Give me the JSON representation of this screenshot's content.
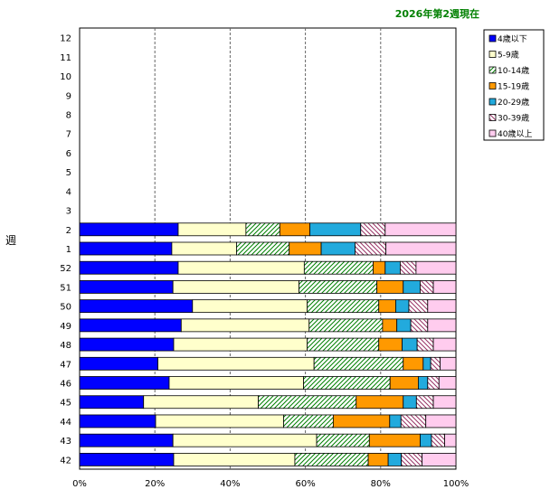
{
  "chart_data": {
    "type": "bar",
    "orientation": "horizontal",
    "stacked": "percent",
    "title": "2026年第2週現在",
    "ylabel": "週",
    "xlabel": "",
    "xlim": [
      0,
      100
    ],
    "x_ticks": [
      "0%",
      "20%",
      "40%",
      "60%",
      "80%",
      "100%"
    ],
    "categories": [
      "12",
      "11",
      "10",
      "9",
      "8",
      "7",
      "6",
      "5",
      "4",
      "3",
      "2",
      "1",
      "52",
      "51",
      "50",
      "49",
      "48",
      "47",
      "46",
      "45",
      "44",
      "43",
      "42"
    ],
    "legend_position": "top-right",
    "series": [
      {
        "name": "4歳以下",
        "color": "#0000ff",
        "pattern": "solid",
        "values": [
          null,
          null,
          null,
          null,
          null,
          null,
          null,
          null,
          null,
          null,
          26.2,
          24.5,
          26.2,
          24.8,
          30.0,
          27.0,
          25.0,
          20.8,
          23.8,
          17.0,
          20.2,
          24.8,
          25.0
        ]
      },
      {
        "name": "5-9歳",
        "color": "#ffffcc",
        "pattern": "solid",
        "values": [
          null,
          null,
          null,
          null,
          null,
          null,
          null,
          null,
          null,
          null,
          18.0,
          17.2,
          33.5,
          33.5,
          30.5,
          34.0,
          35.5,
          41.5,
          35.7,
          30.5,
          34.0,
          38.2,
          32.2
        ]
      },
      {
        "name": "10-14歳",
        "color": "#33aa33",
        "pattern": "hatch",
        "values": [
          null,
          null,
          null,
          null,
          null,
          null,
          null,
          null,
          null,
          null,
          9.0,
          14.0,
          18.3,
          20.7,
          19.0,
          19.5,
          19.0,
          23.7,
          23.0,
          26.0,
          13.2,
          14.0,
          19.5
        ]
      },
      {
        "name": "15-19歳",
        "color": "#ff9900",
        "pattern": "solid",
        "values": [
          null,
          null,
          null,
          null,
          null,
          null,
          null,
          null,
          null,
          null,
          8.0,
          8.5,
          3.2,
          7.0,
          4.5,
          3.8,
          6.2,
          5.3,
          7.5,
          12.5,
          15.0,
          13.5,
          5.3
        ]
      },
      {
        "name": "20-29歳",
        "color": "#22aadd",
        "pattern": "solid",
        "values": [
          null,
          null,
          null,
          null,
          null,
          null,
          null,
          null,
          null,
          null,
          13.5,
          9.0,
          4.0,
          4.5,
          3.5,
          3.7,
          4.0,
          2.0,
          2.5,
          3.5,
          3.0,
          3.0,
          3.5
        ]
      },
      {
        "name": "30-39歳",
        "color": "#993366",
        "pattern": "crosshatch",
        "values": [
          null,
          null,
          null,
          null,
          null,
          null,
          null,
          null,
          null,
          null,
          6.5,
          8.2,
          4.2,
          3.5,
          5.0,
          4.5,
          4.3,
          2.5,
          3.0,
          4.5,
          6.6,
          3.5,
          5.5
        ]
      },
      {
        "name": "40歳以上",
        "color": "#ffccee",
        "pattern": "solid",
        "values": [
          null,
          null,
          null,
          null,
          null,
          null,
          null,
          null,
          null,
          null,
          18.8,
          18.6,
          10.6,
          6.0,
          7.5,
          7.5,
          6.0,
          4.2,
          4.5,
          6.0,
          8.0,
          3.0,
          9.0
        ]
      }
    ]
  }
}
